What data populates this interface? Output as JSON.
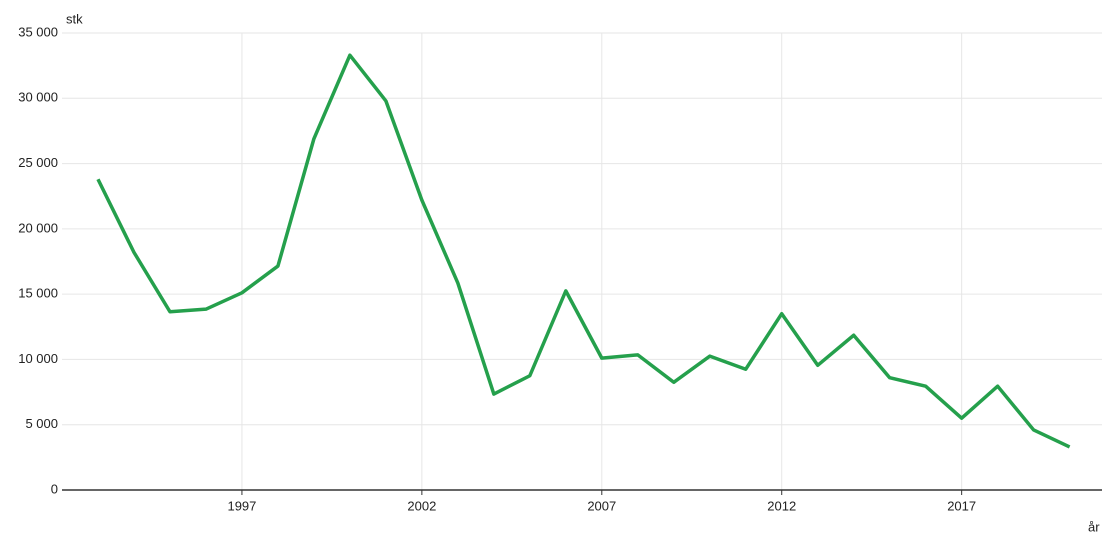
{
  "chart_data": {
    "type": "line",
    "y_label": "stk",
    "x_label": "år",
    "x": [
      1993,
      1994,
      1995,
      1996,
      1997,
      1998,
      1999,
      2000,
      2001,
      2002,
      2003,
      2004,
      2005,
      2006,
      2007,
      2008,
      2009,
      2010,
      2011,
      2012,
      2013,
      2014,
      2015,
      2016,
      2017,
      2018,
      2019,
      2020
    ],
    "series": [
      {
        "name": "stk",
        "color": "#25a04c",
        "values": [
          23800,
          18200,
          13650,
          13850,
          15100,
          17150,
          26900,
          33300,
          29800,
          22200,
          15850,
          7350,
          8750,
          15250,
          10100,
          10350,
          8250,
          10250,
          9250,
          13500,
          9550,
          11850,
          8600,
          7950,
          5500,
          7950,
          4600,
          3300
        ]
      }
    ],
    "xlim": [
      1992,
      2020.9
    ],
    "xticks": [
      1997,
      2002,
      2007,
      2012,
      2017
    ],
    "ylim": [
      0,
      35000
    ],
    "yticks": [
      0,
      {
        "value": 5000,
        "label": "5 000"
      },
      {
        "value": 10000,
        "label": "10 000"
      },
      {
        "value": 15000,
        "label": "15 000"
      },
      {
        "value": 20000,
        "label": "20 000"
      },
      {
        "value": 25000,
        "label": "25 000"
      },
      {
        "value": 30000,
        "label": "30 000"
      },
      {
        "value": 35000,
        "label": "35 000"
      }
    ],
    "grid": true
  }
}
